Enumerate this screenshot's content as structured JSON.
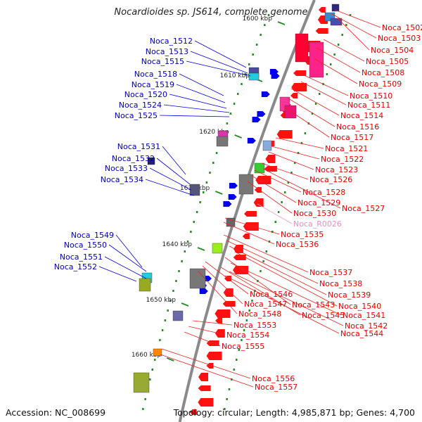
{
  "title": "Nocardioides sp. JS614, complete genome",
  "footer": {
    "accession": "Accession: NC_008699",
    "summary": "Topology: circular; Length: 4,985,871 bp; Genes: 4,700"
  },
  "colors": {
    "forward_label": "#0000b0",
    "reverse_label": "#e00000",
    "rna_label": "#e890c0",
    "backbone": "#8a8a8a",
    "tick": "#2a8a2a"
  },
  "ticks": [
    "1600 kbp",
    "1610 kbp",
    "1620 kbp",
    "1630 kbp",
    "1640 kbp",
    "1650 kbp",
    "1660 kbp"
  ],
  "forward_labels": [
    "Noca_1512",
    "Noca_1513",
    "Noca_1515",
    "Noca_1518",
    "Noca_1519",
    "Noca_1520",
    "Noca_1524",
    "Noca_1525",
    "Noca_1531",
    "Noca_1532",
    "Noca_1533",
    "Noca_1534",
    "Noca_1549",
    "Noca_1550",
    "Noca_1551",
    "Noca_1552"
  ],
  "reverse_labels": [
    "Noca_1502",
    "Noca_1503",
    "Noca_1504",
    "Noca_1505",
    "Noca_1508",
    "Noca_1509",
    "Noca_1510",
    "Noca_1511",
    "Noca_1514",
    "Noca_1516",
    "Noca_1517",
    "Noca_1521",
    "Noca_1522",
    "Noca_1523",
    "Noca_1526",
    "Noca_1528",
    "Noca_1529",
    "Noca_1527",
    "Noca_1530",
    "Noca_R0026",
    "Noca_1535",
    "Noca_1536",
    "Noca_1537",
    "Noca_1538",
    "Noca_1539",
    "Noca_1540",
    "Noca_1546",
    "Noca_1547",
    "Noca_1543",
    "Noca_1541",
    "Noca_1548",
    "Noca_1545",
    "Noca_1542",
    "Noca_1553",
    "Noca_1544",
    "Noca_1554",
    "Noca_1555",
    "Noca_1556",
    "Noca_1557"
  ],
  "rna_labels": [
    "Noca_R0026"
  ]
}
